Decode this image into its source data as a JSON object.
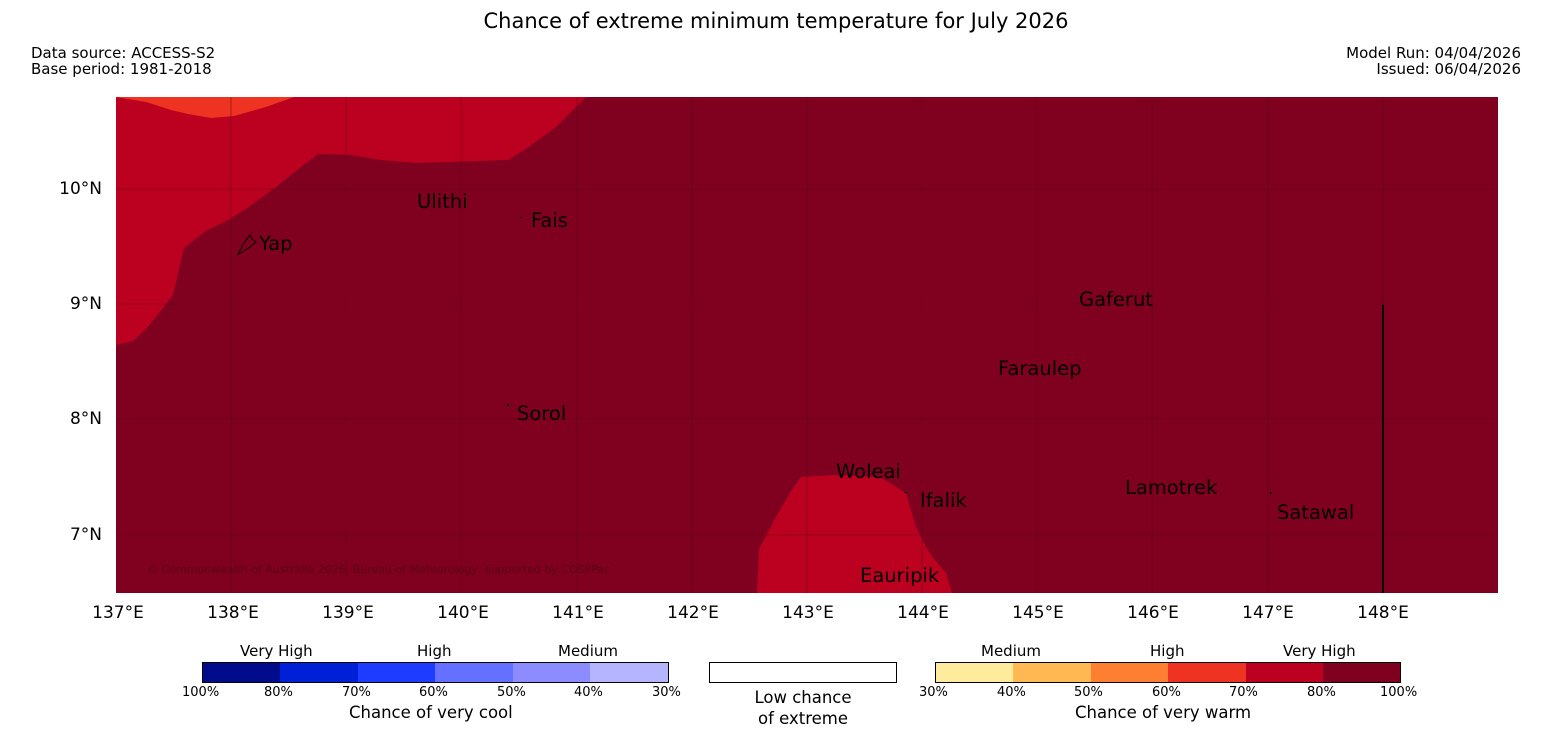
{
  "title": "Chance of extreme minimum temperature for July 2026",
  "meta_left": {
    "source": "Data source: ACCESS-S2",
    "base": "Base period: 1981-2018"
  },
  "meta_right": {
    "model_run": "Model Run: 04/04/2026",
    "issued": "Issued: 06/04/2026"
  },
  "map": {
    "lat_labels": [
      "10°N",
      "9°N",
      "8°N",
      "7°N"
    ],
    "lon_labels": [
      "137°E",
      "138°E",
      "139°E",
      "140°E",
      "141°E",
      "142°E",
      "143°E",
      "144°E",
      "145°E",
      "146°E",
      "147°E",
      "148°E"
    ],
    "places": [
      "Ulithi",
      "Fais",
      "Yap",
      "Gaferut",
      "Faraulep",
      "Sorol",
      "Woleai",
      "Ifalik",
      "Lamotrek",
      "Satawal",
      "Eauripik"
    ],
    "copyright": "© Commonwealth of Australia 2026, Bureau of Meteorology, supported by COSPPac",
    "colors": {
      "very_high_warm": "#800020",
      "high_warm_70": "#bb0020",
      "high_warm_60": "#ee3322"
    }
  },
  "legend": {
    "cool": {
      "groups": [
        "Very High",
        "High",
        "Medium"
      ],
      "ticks": [
        "100%",
        "80%",
        "70%",
        "60%",
        "50%",
        "40%",
        "30%"
      ],
      "title": "Chance of very cool",
      "colors": [
        "#000c8c",
        "#0020d8",
        "#1e3cff",
        "#6470ff",
        "#8c8cff",
        "#b4b4ff"
      ]
    },
    "neutral": {
      "line1": "Low chance",
      "line2": "of extreme"
    },
    "warm": {
      "groups": [
        "Medium",
        "High",
        "Very High"
      ],
      "ticks": [
        "30%",
        "40%",
        "50%",
        "60%",
        "70%",
        "80%",
        "100%"
      ],
      "title": "Chance of very warm",
      "colors": [
        "#ffeb9c",
        "#ffb852",
        "#ff7f32",
        "#ee3322",
        "#bb0020",
        "#800020"
      ]
    }
  }
}
